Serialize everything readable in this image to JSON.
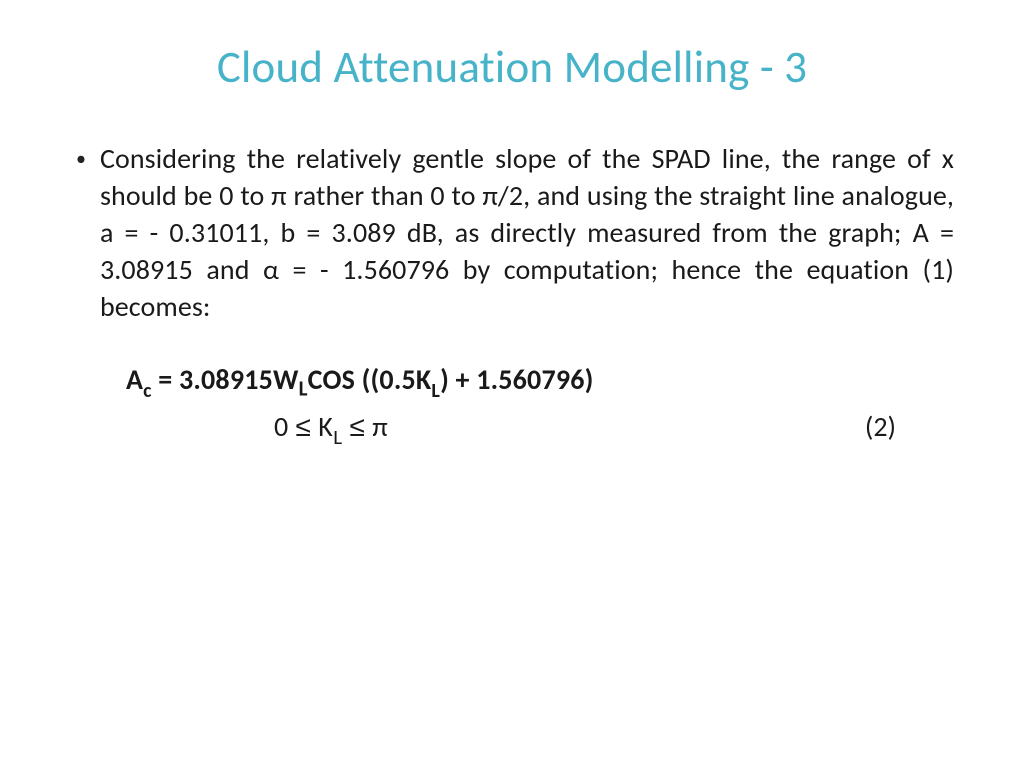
{
  "title": "Cloud Attenuation Modelling - 3",
  "bullet": "•",
  "body": "Considering the relatively gentle slope of the SPAD line, the range of x should be 0 to π rather than 0 to π/2, and using the straight line analogue, a = - 0.31011, b = 3.089 dB, as directly measured from the graph; A = 3.08915 and α = - 1.560796 by computation; hence the equation (1) becomes:",
  "eq": {
    "lhs_A": "A",
    "lhs_c": "c",
    "eq_sign": " = ",
    "coef": "3.08915W",
    "L1": "L",
    "cos": "COS ((0.5K",
    "L2": "L",
    "tail": ") + 1.560796)",
    "range_lhs": "0 ",
    "leq1": "≤",
    "range_mid": " K",
    "L3": "L",
    "range_sp": " ",
    "leq2": "≤",
    "range_rhs": "  π",
    "num": "(2)"
  },
  "colors": {
    "title": "#47b3c9",
    "text": "#1a1a1a",
    "background": "#ffffff"
  },
  "typography": {
    "title_fontsize": 45,
    "body_fontsize": 28,
    "eq_fontsize": 28,
    "eq_weight": "700"
  }
}
